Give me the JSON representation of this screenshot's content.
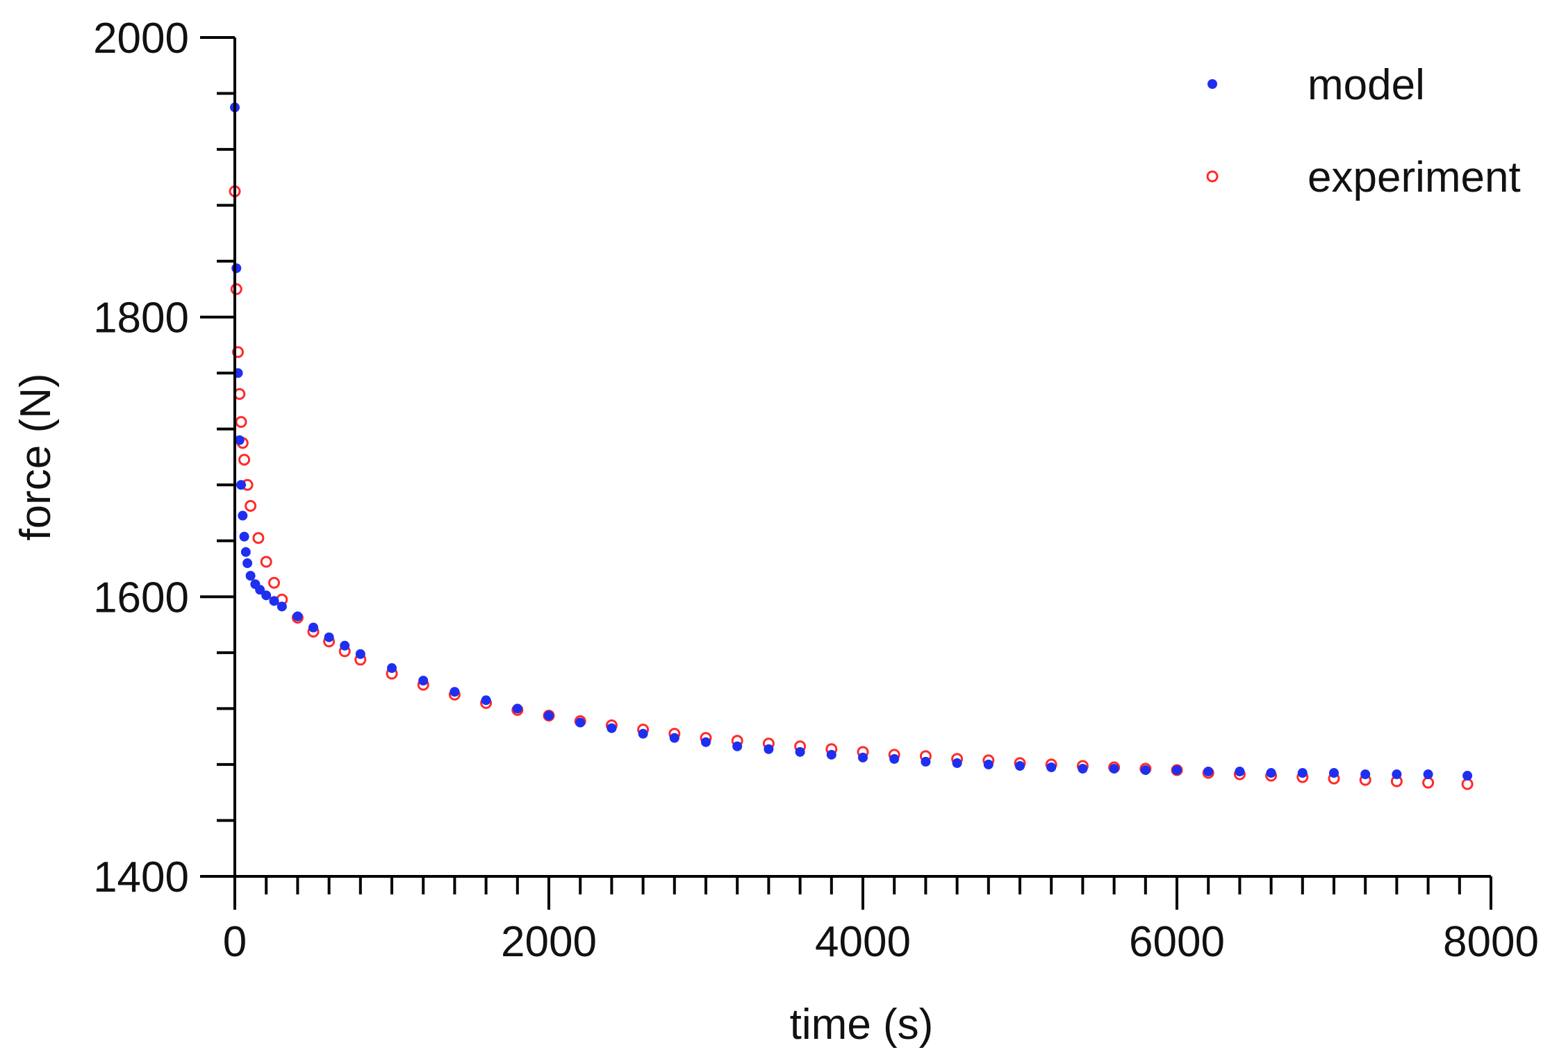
{
  "chart_data": {
    "type": "scatter",
    "title": "",
    "xlabel": "time (s)",
    "ylabel": "force (N)",
    "xlim": [
      0,
      8000
    ],
    "ylim": [
      1400,
      2000
    ],
    "x_ticks": [
      0,
      2000,
      4000,
      6000,
      8000
    ],
    "x_tick_labels": [
      "0",
      "2000",
      "4000",
      "6000",
      "8000"
    ],
    "x_minor_step": 200,
    "y_ticks": [
      1400,
      1600,
      1800,
      2000
    ],
    "y_tick_labels": [
      "1400",
      "1600",
      "1800",
      "2000"
    ],
    "y_minor_step": 40,
    "grid": false,
    "legend_position": "top-right",
    "series": [
      {
        "name": "experiment",
        "marker": "open-circle",
        "color": "#ff2a2a",
        "x": [
          0,
          10,
          20,
          30,
          40,
          50,
          60,
          80,
          100,
          150,
          200,
          250,
          300,
          400,
          500,
          600,
          700,
          800,
          1000,
          1200,
          1400,
          1600,
          1800,
          2000,
          2200,
          2400,
          2600,
          2800,
          3000,
          3200,
          3400,
          3600,
          3800,
          4000,
          4200,
          4400,
          4600,
          4800,
          5000,
          5200,
          5400,
          5600,
          5800,
          6000,
          6200,
          6400,
          6600,
          6800,
          7000,
          7200,
          7400,
          7600,
          7850
        ],
        "values": [
          1890,
          1820,
          1775,
          1745,
          1725,
          1710,
          1698,
          1680,
          1665,
          1642,
          1625,
          1610,
          1598,
          1585,
          1575,
          1568,
          1561,
          1555,
          1545,
          1537,
          1530,
          1524,
          1519,
          1515,
          1511,
          1508,
          1505,
          1502,
          1499,
          1497,
          1495,
          1493,
          1491,
          1489,
          1487,
          1486,
          1484,
          1483,
          1481,
          1480,
          1479,
          1478,
          1477,
          1476,
          1474,
          1473,
          1472,
          1471,
          1470,
          1469,
          1468,
          1467,
          1466
        ]
      },
      {
        "name": "model",
        "marker": "filled-circle",
        "color": "#1f2ff0",
        "x": [
          0,
          10,
          20,
          30,
          40,
          50,
          60,
          70,
          80,
          100,
          130,
          160,
          200,
          250,
          300,
          400,
          500,
          600,
          700,
          800,
          1000,
          1200,
          1400,
          1600,
          1800,
          2000,
          2200,
          2400,
          2600,
          2800,
          3000,
          3200,
          3400,
          3600,
          3800,
          4000,
          4200,
          4400,
          4600,
          4800,
          5000,
          5200,
          5400,
          5600,
          5800,
          6000,
          6200,
          6400,
          6600,
          6800,
          7000,
          7200,
          7400,
          7600,
          7850
        ],
        "values": [
          1950,
          1835,
          1760,
          1712,
          1680,
          1658,
          1643,
          1632,
          1624,
          1615,
          1609,
          1605,
          1601,
          1597,
          1593,
          1586,
          1578,
          1571,
          1565,
          1559,
          1549,
          1540,
          1532,
          1526,
          1520,
          1515,
          1510,
          1506,
          1502,
          1499,
          1496,
          1493,
          1491,
          1489,
          1487,
          1485,
          1484,
          1482,
          1481,
          1480,
          1479,
          1478,
          1477,
          1477,
          1476,
          1476,
          1475,
          1475,
          1474,
          1474,
          1474,
          1473,
          1473,
          1473,
          1472
        ]
      }
    ]
  }
}
